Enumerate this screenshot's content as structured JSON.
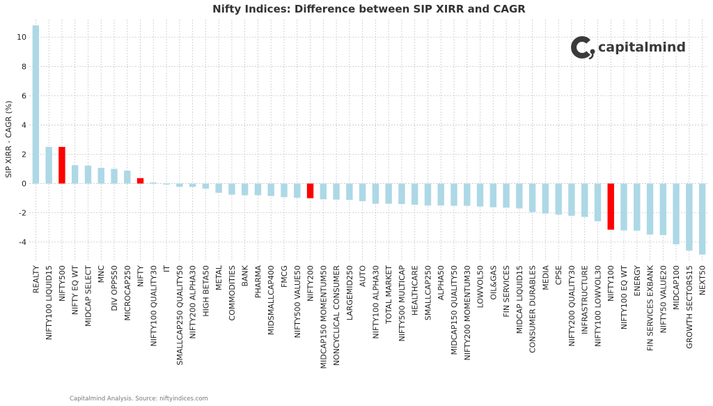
{
  "chart_data": {
    "type": "bar",
    "title": "Nifty Indices: Difference between SIP XIRR and CAGR",
    "ylabel": "SIP XIRR - CAGR (%)",
    "xlabel": "",
    "ylim": [
      -5.3,
      11.2
    ],
    "yticks": [
      -4,
      -2,
      0,
      2,
      4,
      6,
      8,
      10
    ],
    "grid": true,
    "colors": {
      "default": "#add8e6",
      "highlight": "#ff0000"
    },
    "highlighted": [
      "NIFTY500",
      "NIFTY",
      "NIFTY200",
      "NIFTY100"
    ],
    "categories": [
      "REALTY",
      "NIFTY100 LIQUID15",
      "NIFTY500",
      "NIFTY EQ WT",
      "MIDCAP SELECT",
      "MNC",
      "DIV OPPS50",
      "MICROCAP250",
      "NIFTY",
      "NIFTY100 QUALITY30",
      "IT",
      "SMALLCAP250 QUALITY50",
      "NIFTY200 ALPHA30",
      "HIGH BETA50",
      "METAL",
      "COMMODITIES",
      "BANK",
      "PHARMA",
      "MIDSMALLCAP400",
      "FMCG",
      "NIFTY500 VALUE50",
      "NIFTY200",
      "MIDCAP150 MOMENTUM50",
      "NONCYCLICAL CONSUMER",
      "LARGEMID250",
      "AUTO",
      "NIFTY100 ALPHA30",
      "TOTAL MARKET",
      "NIFTY500 MULTICAP",
      "HEALTHCARE",
      "SMALLCAP250",
      "ALPHA50",
      "MIDCAP150 QUALITY50",
      "NIFTY200 MOMENTUM30",
      "LOWVOL50",
      "OIL&GAS",
      "FIN SERVICES",
      "MIDCAP LIQUID15",
      "CONSUMER DURABLES",
      "MEDIA",
      "CPSE",
      "NIFTY200 QUALITY30",
      "INFRASTRUCTURE",
      "NIFTY100 LOWVOL30",
      "NIFTY100",
      "NIFTY100 EQ WT",
      "ENERGY",
      "FIN SERVICES EXBANK",
      "NIFTY50 VALUE20",
      "MIDCAP100",
      "GROWTH SECTORS15",
      "NEXT50"
    ],
    "values": [
      10.8,
      2.5,
      2.5,
      1.25,
      1.22,
      1.07,
      1.0,
      0.88,
      0.37,
      0.07,
      -0.07,
      -0.22,
      -0.23,
      -0.35,
      -0.63,
      -0.76,
      -0.8,
      -0.8,
      -0.85,
      -0.93,
      -0.97,
      -1.0,
      -1.08,
      -1.1,
      -1.12,
      -1.2,
      -1.38,
      -1.38,
      -1.4,
      -1.45,
      -1.5,
      -1.5,
      -1.52,
      -1.52,
      -1.57,
      -1.62,
      -1.65,
      -1.7,
      -1.95,
      -2.05,
      -2.12,
      -2.2,
      -2.28,
      -2.58,
      -3.15,
      -3.2,
      -3.22,
      -3.48,
      -3.52,
      -4.15,
      -4.58,
      -4.85
    ]
  },
  "logo": {
    "text": "capitalmind",
    "icon": "capitalmind-logo-icon"
  },
  "footer": {
    "source": "Capitalmind Analysis. Source: niftyindices.com"
  }
}
